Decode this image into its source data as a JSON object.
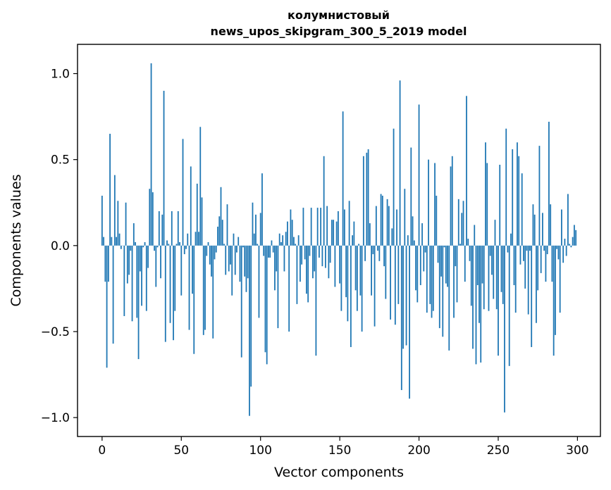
{
  "chart_data": {
    "type": "bar",
    "title": "колумнистовый",
    "subtitle": "news_upos_skipgram_300_5_2019 model",
    "xlabel": "Vector components",
    "ylabel": "Components values",
    "xlim": [
      -15.5,
      314.5
    ],
    "ylim": [
      -1.11,
      1.17
    ],
    "xticks": [
      0,
      50,
      100,
      150,
      200,
      250,
      300
    ],
    "xtick_labels": [
      "0",
      "50",
      "100",
      "150",
      "200",
      "250",
      "300"
    ],
    "yticks": [
      -1.0,
      -0.5,
      0.0,
      0.5,
      1.0
    ],
    "ytick_labels": [
      "−1.0",
      "−0.5",
      "0.0",
      "0.5",
      "1.0"
    ],
    "grid": false,
    "bar_color": "#1f77b4",
    "x": "0..299",
    "values": [
      0.29,
      0.05,
      -0.21,
      -0.71,
      -0.21,
      0.65,
      0.05,
      -0.57,
      0.41,
      0.05,
      0.26,
      0.07,
      -0.02,
      0.0,
      -0.41,
      0.25,
      -0.22,
      -0.17,
      -0.03,
      -0.44,
      0.13,
      0.02,
      -0.42,
      -0.66,
      -0.15,
      -0.35,
      -0.01,
      0.02,
      -0.38,
      -0.13,
      0.33,
      1.06,
      0.31,
      -0.03,
      -0.24,
      -0.01,
      0.2,
      -0.19,
      0.18,
      0.9,
      -0.56,
      0.03,
      0.01,
      -0.45,
      0.2,
      -0.55,
      -0.38,
      0.01,
      0.2,
      0.02,
      -0.29,
      0.62,
      -0.05,
      -0.02,
      0.07,
      -0.49,
      0.46,
      -0.28,
      -0.63,
      0.08,
      0.36,
      0.08,
      0.69,
      0.28,
      -0.52,
      -0.49,
      -0.06,
      0.02,
      -0.11,
      -0.18,
      -0.54,
      -0.08,
      -0.04,
      0.11,
      0.17,
      0.34,
      0.15,
      0.01,
      -0.17,
      0.24,
      -0.15,
      -0.11,
      -0.29,
      0.07,
      -0.17,
      -0.04,
      0.05,
      -0.21,
      -0.65,
      -0.01,
      -0.18,
      -0.27,
      -0.19,
      -0.99,
      -0.82,
      0.25,
      0.07,
      0.18,
      0.01,
      -0.42,
      0.19,
      0.42,
      -0.06,
      -0.62,
      -0.69,
      -0.07,
      -0.07,
      0.03,
      -0.04,
      -0.26,
      -0.15,
      -0.48,
      0.07,
      0.02,
      0.06,
      -0.15,
      0.08,
      0.14,
      -0.5,
      0.21,
      0.15,
      0.05,
      0.01,
      -0.34,
      0.06,
      -0.21,
      -0.11,
      0.22,
      -0.08,
      -0.28,
      -0.33,
      -0.06,
      0.22,
      -0.19,
      -0.15,
      -0.64,
      0.22,
      -0.07,
      0.22,
      -0.12,
      0.52,
      -0.13,
      0.23,
      -0.19,
      -0.1,
      0.15,
      0.15,
      -0.24,
      0.14,
      0.2,
      -0.22,
      -0.38,
      0.78,
      0.21,
      -0.3,
      -0.44,
      0.26,
      -0.59,
      0.06,
      0.14,
      -0.26,
      -0.38,
      0.01,
      -0.29,
      -0.5,
      0.52,
      -0.09,
      0.54,
      0.56,
      0.13,
      -0.29,
      -0.05,
      -0.47,
      0.23,
      -0.03,
      -0.09,
      0.3,
      0.29,
      -0.12,
      -0.31,
      0.27,
      0.23,
      -0.43,
      0.1,
      0.68,
      -0.46,
      0.21,
      -0.34,
      0.96,
      -0.84,
      -0.6,
      0.33,
      -0.58,
      0.06,
      -0.89,
      0.57,
      0.17,
      0.03,
      -0.26,
      -0.33,
      0.82,
      -0.23,
      0.13,
      -0.15,
      -0.04,
      -0.39,
      0.5,
      -0.34,
      -0.42,
      -0.38,
      0.48,
      0.29,
      -0.1,
      -0.48,
      -0.18,
      -0.53,
      -0.01,
      -0.22,
      -0.24,
      -0.61,
      0.46,
      0.52,
      -0.42,
      -0.12,
      -0.33,
      0.27,
      0.01,
      0.19,
      0.26,
      -0.21,
      0.87,
      0.04,
      -0.09,
      -0.35,
      -0.6,
      0.12,
      -0.69,
      -0.23,
      -0.45,
      -0.68,
      -0.22,
      -0.37,
      0.6,
      0.48,
      -0.38,
      -0.06,
      -0.17,
      -0.31,
      0.15,
      -0.37,
      -0.64,
      0.47,
      -0.27,
      -0.34,
      -0.97,
      0.68,
      -0.04,
      -0.7,
      0.07,
      0.56,
      -0.23,
      -0.39,
      0.6,
      0.52,
      -0.11,
      0.42,
      -0.09,
      -0.25,
      -0.03,
      -0.4,
      -0.03,
      -0.59,
      0.24,
      0.18,
      -0.45,
      -0.26,
      0.58,
      -0.16,
      0.19,
      -0.03,
      -0.21,
      -0.05,
      0.72,
      0.24,
      -0.21,
      -0.64,
      -0.52,
      -0.02,
      -0.08,
      -0.39,
      0.21,
      -0.1,
      0.04,
      -0.06,
      0.3,
      0.01,
      -0.01,
      0.05,
      0.12,
      0.09
    ]
  }
}
